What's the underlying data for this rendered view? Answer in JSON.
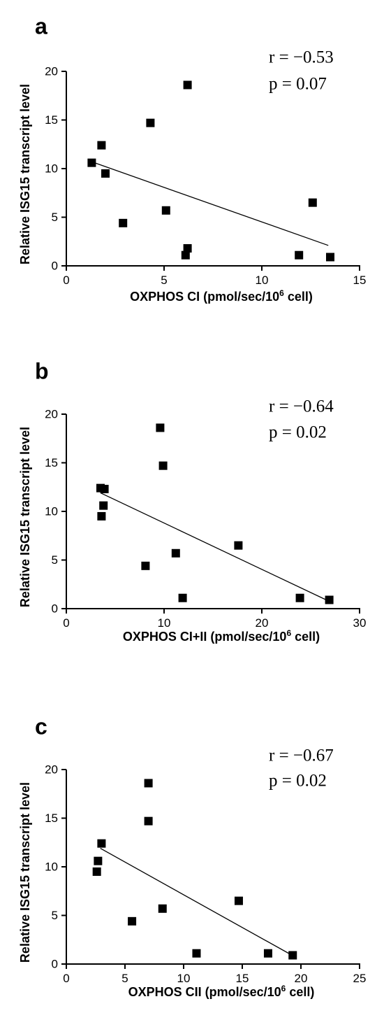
{
  "chart_data": [
    {
      "type": "scatter",
      "panel": "a",
      "xlabel": {
        "main": "OXPHOS CI (pmol/sec/10",
        "sup": "6",
        "end": " cell)"
      },
      "ylabel": "Relative ISG15 transcript level",
      "xlim": [
        0,
        15
      ],
      "ylim": [
        0,
        20
      ],
      "xticks": [
        0,
        5,
        10,
        15
      ],
      "yticks": [
        0,
        5,
        10,
        15,
        20
      ],
      "stats": {
        "r": "r = −0.53",
        "p": "p = 0.07"
      },
      "points": [
        {
          "x": 1.3,
          "y": 10.6
        },
        {
          "x": 1.8,
          "y": 12.4
        },
        {
          "x": 2.0,
          "y": 9.5
        },
        {
          "x": 2.9,
          "y": 4.4
        },
        {
          "x": 4.3,
          "y": 14.7
        },
        {
          "x": 5.1,
          "y": 5.7
        },
        {
          "x": 6.1,
          "y": 1.1
        },
        {
          "x": 6.2,
          "y": 1.8
        },
        {
          "x": 6.2,
          "y": 18.6
        },
        {
          "x": 11.9,
          "y": 1.1
        },
        {
          "x": 12.6,
          "y": 6.5
        },
        {
          "x": 13.5,
          "y": 0.9
        }
      ],
      "fit_line": {
        "x": [
          1.3,
          13.4
        ],
        "y": [
          10.7,
          2.1
        ]
      }
    },
    {
      "type": "scatter",
      "panel": "b",
      "xlabel": {
        "main": "OXPHOS CI+II (pmol/sec/10",
        "sup": "6",
        "end": " cell)"
      },
      "ylabel": "Relative ISG15 transcript level",
      "xlim": [
        0,
        30
      ],
      "ylim": [
        0,
        20
      ],
      "xticks": [
        0,
        10,
        20,
        30
      ],
      "yticks": [
        0,
        5,
        10,
        15,
        20
      ],
      "stats": {
        "r": "r = −0.64",
        "p": "p = 0.02"
      },
      "points": [
        {
          "x": 3.5,
          "y": 12.4
        },
        {
          "x": 3.9,
          "y": 12.3
        },
        {
          "x": 3.8,
          "y": 10.6
        },
        {
          "x": 3.6,
          "y": 9.5
        },
        {
          "x": 8.1,
          "y": 4.4
        },
        {
          "x": 9.6,
          "y": 18.6
        },
        {
          "x": 9.9,
          "y": 14.7
        },
        {
          "x": 11.2,
          "y": 5.7
        },
        {
          "x": 11.9,
          "y": 1.1
        },
        {
          "x": 17.6,
          "y": 6.5
        },
        {
          "x": 23.9,
          "y": 1.1
        },
        {
          "x": 26.9,
          "y": 0.9
        }
      ],
      "fit_line": {
        "x": [
          3.5,
          26.8
        ],
        "y": [
          11.9,
          0.8
        ]
      }
    },
    {
      "type": "scatter",
      "panel": "c",
      "xlabel": {
        "main": "OXPHOS CII (pmol/sec/10",
        "sup": "6",
        "end": " cell)"
      },
      "ylabel": "Relative ISG15 transcript level",
      "xlim": [
        0,
        25
      ],
      "ylim": [
        0,
        20
      ],
      "xticks": [
        0,
        5,
        10,
        15,
        20,
        25
      ],
      "yticks": [
        0,
        5,
        10,
        15,
        20
      ],
      "stats": {
        "r": "r = −0.67",
        "p": "p = 0.02"
      },
      "points": [
        {
          "x": 3.0,
          "y": 12.4
        },
        {
          "x": 2.7,
          "y": 10.6
        },
        {
          "x": 2.6,
          "y": 9.5
        },
        {
          "x": 5.6,
          "y": 4.4
        },
        {
          "x": 7.0,
          "y": 18.6
        },
        {
          "x": 7.0,
          "y": 14.7
        },
        {
          "x": 8.2,
          "y": 5.7
        },
        {
          "x": 11.1,
          "y": 1.1
        },
        {
          "x": 14.7,
          "y": 6.5
        },
        {
          "x": 17.2,
          "y": 1.1
        },
        {
          "x": 19.3,
          "y": 0.9
        }
      ],
      "fit_line": {
        "x": [
          2.9,
          19.4
        ],
        "y": [
          11.9,
          0.8
        ]
      }
    }
  ]
}
